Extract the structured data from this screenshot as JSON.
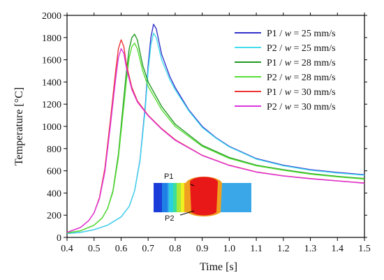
{
  "chart_data": {
    "type": "line",
    "xlabel": "Time [s]",
    "ylabel": "Temperature [°C]",
    "xlim": [
      0.4,
      1.5
    ],
    "ylim": [
      0,
      2000
    ],
    "xticks": [
      0.4,
      0.5,
      0.6,
      0.7,
      0.8,
      0.9,
      1.0,
      1.1,
      1.2,
      1.3,
      1.4,
      1.5
    ],
    "xtick_labels": [
      "0.4",
      "0.5",
      "0.6",
      "0.7",
      "0.8",
      "0.9",
      "1.0",
      "1.1",
      "1.2",
      "1.3",
      "1.4",
      "1.5"
    ],
    "yticks": [
      0,
      200,
      400,
      600,
      800,
      1000,
      1200,
      1400,
      1600,
      1800,
      2000
    ],
    "ytick_labels": [
      "0",
      "200",
      "400",
      "600",
      "800",
      "1000",
      "1200",
      "1400",
      "1600",
      "1800",
      "2000"
    ],
    "grid": false,
    "legend_position": "top-right",
    "series": [
      {
        "name": "P1 / w = 25 mm/s",
        "legend_prefix": "P1 / ",
        "legend_var": "w",
        "legend_suffix": " = 25 mm/s",
        "color": "#3333cc",
        "x": [
          0.4,
          0.45,
          0.5,
          0.55,
          0.6,
          0.63,
          0.65,
          0.67,
          0.69,
          0.7,
          0.71,
          0.72,
          0.73,
          0.75,
          0.78,
          0.8,
          0.85,
          0.9,
          0.95,
          1.0,
          1.1,
          1.2,
          1.3,
          1.4,
          1.5
        ],
        "y": [
          35,
          45,
          70,
          110,
          185,
          280,
          420,
          700,
          1200,
          1550,
          1800,
          1920,
          1880,
          1650,
          1450,
          1350,
          1150,
          1000,
          900,
          820,
          710,
          650,
          610,
          585,
          565
        ]
      },
      {
        "name": "P2 / w = 25 mm/s",
        "legend_prefix": "P2 / ",
        "legend_var": "w",
        "legend_suffix": " = 25 mm/s",
        "color": "#44ddee",
        "x": [
          0.4,
          0.45,
          0.5,
          0.55,
          0.6,
          0.63,
          0.65,
          0.67,
          0.69,
          0.7,
          0.71,
          0.72,
          0.73,
          0.75,
          0.78,
          0.8,
          0.85,
          0.9,
          0.95,
          1.0,
          1.1,
          1.2,
          1.3,
          1.4,
          1.5
        ],
        "y": [
          35,
          45,
          70,
          110,
          185,
          280,
          420,
          690,
          1170,
          1500,
          1730,
          1840,
          1800,
          1600,
          1420,
          1330,
          1140,
          990,
          895,
          815,
          705,
          645,
          605,
          580,
          560
        ]
      },
      {
        "name": "P1 / w = 28 mm/s",
        "legend_prefix": "P1 / ",
        "legend_var": "w",
        "legend_suffix": " = 28 mm/s",
        "color": "#229922",
        "x": [
          0.4,
          0.45,
          0.5,
          0.53,
          0.55,
          0.57,
          0.59,
          0.61,
          0.62,
          0.63,
          0.64,
          0.65,
          0.66,
          0.68,
          0.7,
          0.75,
          0.8,
          0.9,
          1.0,
          1.1,
          1.2,
          1.3,
          1.4,
          1.5
        ],
        "y": [
          40,
          60,
          110,
          175,
          260,
          420,
          750,
          1250,
          1500,
          1700,
          1800,
          1830,
          1780,
          1550,
          1400,
          1180,
          1020,
          830,
          720,
          650,
          610,
          575,
          550,
          530
        ]
      },
      {
        "name": "P2 / w = 28 mm/s",
        "legend_prefix": "P2 / ",
        "legend_var": "w",
        "legend_suffix": " = 28 mm/s",
        "color": "#55dd33",
        "x": [
          0.4,
          0.45,
          0.5,
          0.53,
          0.55,
          0.57,
          0.59,
          0.61,
          0.62,
          0.63,
          0.64,
          0.65,
          0.66,
          0.68,
          0.7,
          0.75,
          0.8,
          0.9,
          1.0,
          1.1,
          1.2,
          1.3,
          1.4,
          1.5
        ],
        "y": [
          40,
          60,
          110,
          175,
          260,
          410,
          720,
          1180,
          1420,
          1620,
          1720,
          1750,
          1700,
          1500,
          1360,
          1150,
          1000,
          820,
          712,
          645,
          605,
          570,
          545,
          525
        ]
      },
      {
        "name": "P1 / w = 30 mm/s",
        "legend_prefix": "P1 / ",
        "legend_var": "w",
        "legend_suffix": " = 30 mm/s",
        "color": "#ee3333",
        "x": [
          0.4,
          0.45,
          0.48,
          0.5,
          0.52,
          0.54,
          0.56,
          0.58,
          0.59,
          0.6,
          0.61,
          0.62,
          0.64,
          0.66,
          0.7,
          0.75,
          0.8,
          0.9,
          1.0,
          1.1,
          1.2,
          1.3,
          1.4,
          1.5
        ],
        "y": [
          45,
          90,
          150,
          220,
          360,
          620,
          1050,
          1500,
          1700,
          1780,
          1720,
          1550,
          1350,
          1230,
          1100,
          980,
          880,
          740,
          650,
          590,
          555,
          530,
          510,
          490
        ]
      },
      {
        "name": "P2 / w = 30 mm/s",
        "legend_prefix": "P2 / ",
        "legend_var": "w",
        "legend_suffix": " = 30 mm/s",
        "color": "#dd33dd",
        "x": [
          0.4,
          0.45,
          0.48,
          0.5,
          0.52,
          0.54,
          0.56,
          0.58,
          0.59,
          0.6,
          0.61,
          0.62,
          0.64,
          0.66,
          0.7,
          0.75,
          0.8,
          0.9,
          1.0,
          1.1,
          1.2,
          1.3,
          1.4,
          1.5
        ],
        "y": [
          45,
          90,
          150,
          220,
          350,
          590,
          1000,
          1430,
          1620,
          1700,
          1660,
          1520,
          1330,
          1220,
          1095,
          975,
          875,
          738,
          648,
          588,
          553,
          528,
          508,
          488
        ]
      }
    ],
    "inset": {
      "labels": [
        "P1",
        "P2"
      ]
    }
  }
}
